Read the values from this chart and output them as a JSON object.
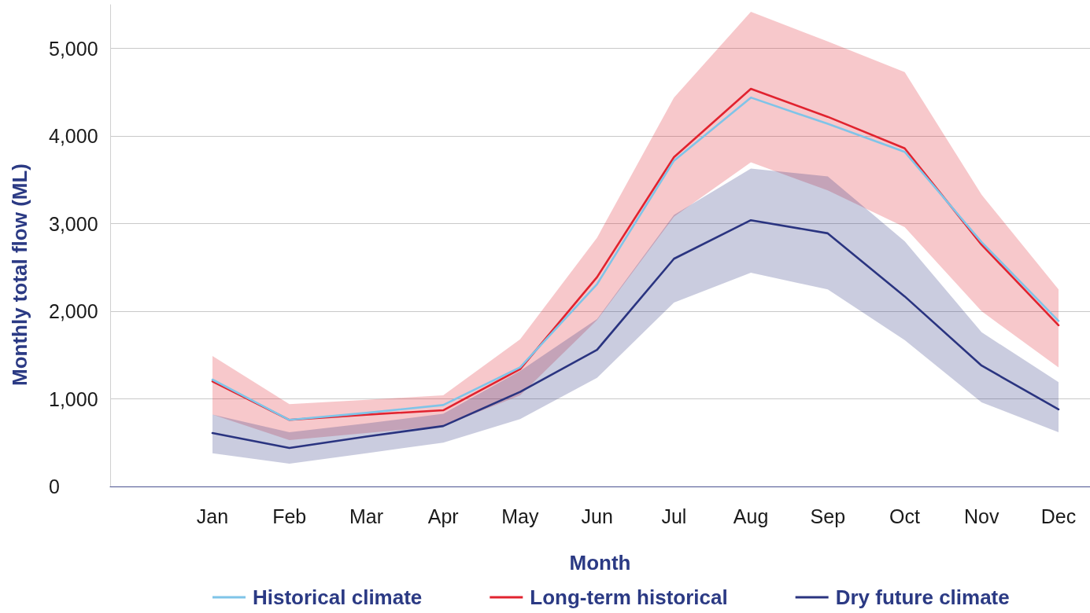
{
  "chart_data": {
    "type": "line",
    "xlabel": "Month",
    "ylabel": "Monthly total flow (ML)",
    "categories": [
      "Jan",
      "Feb",
      "Mar",
      "Apr",
      "May",
      "Jun",
      "Jul",
      "Aug",
      "Sep",
      "Oct",
      "Nov",
      "Dec"
    ],
    "series": [
      {
        "name": "Historical climate",
        "color": "#7fc4e8",
        "values": [
          1220,
          760,
          840,
          930,
          1360,
          2310,
          3720,
          4440,
          4140,
          3820,
          2790,
          1890
        ]
      },
      {
        "name": "Long-term historical",
        "color": "#e1232f",
        "values": [
          1200,
          760,
          820,
          870,
          1340,
          2390,
          3760,
          4540,
          4220,
          3860,
          2760,
          1840
        ],
        "lower": [
          820,
          530,
          610,
          690,
          1040,
          1900,
          3080,
          3700,
          3380,
          2960,
          2000,
          1360
        ],
        "upper": [
          1490,
          940,
          990,
          1040,
          1680,
          2840,
          4440,
          5420,
          5080,
          4730,
          3330,
          2250
        ]
      },
      {
        "name": "Dry future climate",
        "color": "#2a3480",
        "values": [
          610,
          440,
          570,
          690,
          1080,
          1560,
          2600,
          3040,
          2890,
          2170,
          1380,
          880
        ],
        "lower": [
          380,
          260,
          380,
          500,
          770,
          1240,
          2100,
          2440,
          2250,
          1670,
          960,
          620
        ],
        "upper": [
          820,
          620,
          720,
          830,
          1320,
          1910,
          3100,
          3630,
          3540,
          2800,
          1760,
          1190
        ]
      }
    ],
    "ylim": [
      0,
      5500
    ],
    "yticks": [
      0,
      {
        "value": 1000,
        "label": "1,000"
      },
      {
        "value": 2000,
        "label": "2,000"
      },
      {
        "value": 3000,
        "label": "3,000"
      },
      {
        "value": 4000,
        "label": "4,000"
      },
      {
        "value": 5000,
        "label": "5,000"
      }
    ],
    "grid": "y",
    "legend": "bottom",
    "marker": "none",
    "line_style": "solid"
  }
}
